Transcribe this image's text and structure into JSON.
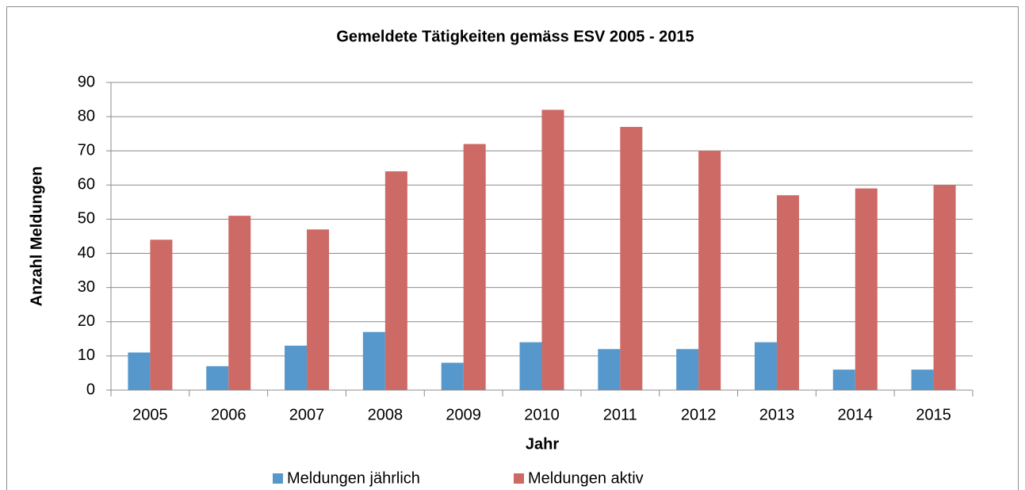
{
  "chart_data": {
    "type": "bar",
    "title": "Gemeldete Tätigkeiten gemäss ESV 2005 - 2015",
    "xlabel": "Jahr",
    "ylabel": "Anzahl Meldungen",
    "categories": [
      "2005",
      "2006",
      "2007",
      "2008",
      "2009",
      "2010",
      "2011",
      "2012",
      "2013",
      "2014",
      "2015"
    ],
    "series": [
      {
        "name": "Meldungen jährlich",
        "color": "#5698cb",
        "values": [
          11,
          7,
          13,
          17,
          8,
          14,
          12,
          12,
          14,
          6,
          6
        ]
      },
      {
        "name": "Meldungen aktiv",
        "color": "#cd6a65",
        "values": [
          44,
          51,
          47,
          64,
          72,
          82,
          77,
          70,
          57,
          59,
          60
        ]
      }
    ],
    "ylim": [
      0,
      90
    ],
    "yticks": [
      0,
      10,
      20,
      30,
      40,
      50,
      60,
      70,
      80,
      90
    ],
    "grid": true,
    "legend": "bottom"
  }
}
